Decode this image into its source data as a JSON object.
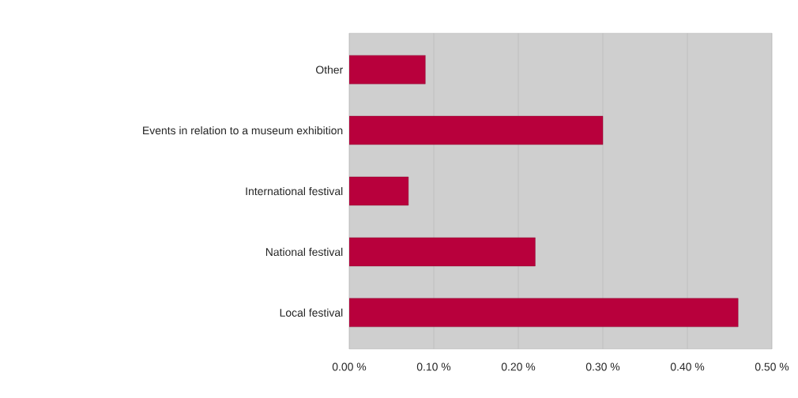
{
  "chart_data": {
    "type": "bar",
    "orientation": "horizontal",
    "categories": [
      "Other",
      "Events in relation to a museum exhibition",
      "International festival",
      "National festival",
      "Local festival"
    ],
    "values": [
      0.09,
      0.3,
      0.07,
      0.22,
      0.46
    ],
    "color": "#b8003c",
    "xlim": [
      0,
      0.5
    ],
    "xticks": [
      {
        "value": 0,
        "label": "0.00 %"
      },
      {
        "value": 0.1,
        "label": "0.10 %"
      },
      {
        "value": 0.2,
        "label": "0.20 %"
      },
      {
        "value": 0.3,
        "label": "0.30 %"
      },
      {
        "value": 0.4,
        "label": "0.40 %"
      },
      {
        "value": 0.5,
        "label": "0.50 %"
      }
    ],
    "grid": "x"
  }
}
